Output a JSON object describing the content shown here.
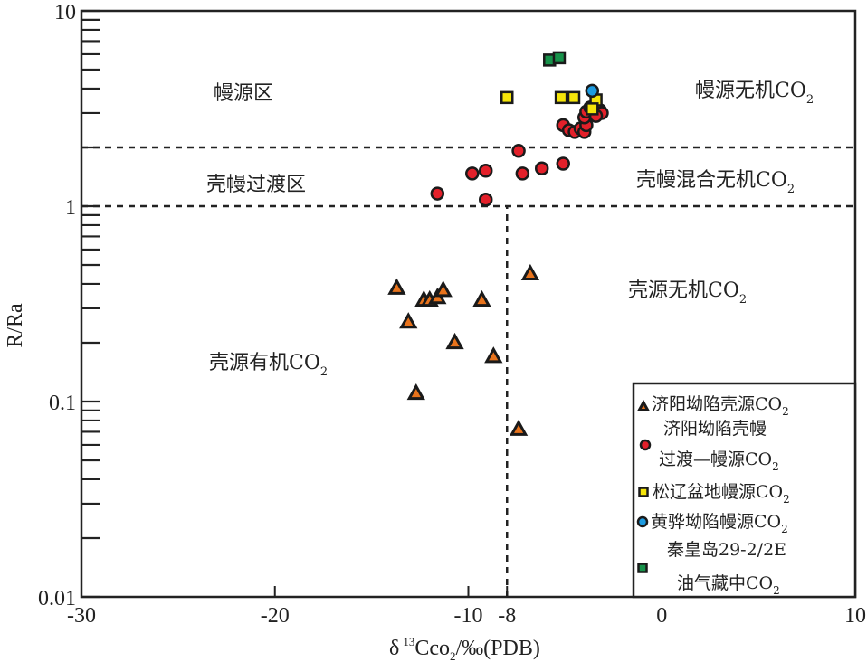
{
  "chart_data": {
    "type": "scatter",
    "title": "",
    "xlabel": {
      "delta": "δ",
      "sup": "13",
      "main": "Cco",
      "sub": "2",
      "tail": "/‰(PDB)"
    },
    "ylabel": "R/Ra",
    "xlim": [
      -30,
      10
    ],
    "ylim": [
      0.01,
      10
    ],
    "yscale": "log",
    "x_ticks": [
      -30,
      -20,
      -10,
      -8,
      0,
      10
    ],
    "x_tick_labels": [
      "-30",
      "-20",
      "-10",
      "-8",
      "0",
      "10"
    ],
    "y_ticks": [
      10,
      1,
      0.1,
      0.01
    ],
    "y_tick_labels": [
      "10",
      "1",
      "0.1",
      "0.01"
    ],
    "reference_lines": [
      {
        "type": "horizontal",
        "y": 2,
        "x_from": -30,
        "x_to": 10,
        "style": "dashed"
      },
      {
        "type": "horizontal",
        "y": 1,
        "x_from": -30,
        "x_to": 10,
        "style": "dashed"
      },
      {
        "type": "vertical",
        "x": -8,
        "y_from": 0.01,
        "y_to": 1,
        "style": "dashed"
      }
    ],
    "region_labels": [
      {
        "text": "幔源区",
        "sub": ""
      },
      {
        "text": "幔源无机CO",
        "sub": "2"
      },
      {
        "text": "壳幔过渡区",
        "sub": ""
      },
      {
        "text": "壳幔混合无机CO",
        "sub": "2"
      },
      {
        "text": "壳源无机CO",
        "sub": "2"
      },
      {
        "text": "壳源有机CO",
        "sub": "2"
      }
    ],
    "legend_position": "bottom-right",
    "series": [
      {
        "name": "济阳坳陷壳源CO2",
        "legend_lines": [
          {
            "text": "济阳坳陷壳源CO",
            "sub": "2"
          }
        ],
        "marker": "triangle",
        "color": "#e8731c",
        "points": [
          {
            "x": -13.7,
            "y": 0.38
          },
          {
            "x": -13.1,
            "y": 0.255
          },
          {
            "x": -12.3,
            "y": 0.33
          },
          {
            "x": -12.0,
            "y": 0.33
          },
          {
            "x": -11.6,
            "y": 0.34
          },
          {
            "x": -11.3,
            "y": 0.37
          },
          {
            "x": -10.7,
            "y": 0.2
          },
          {
            "x": -9.3,
            "y": 0.33
          },
          {
            "x": -8.7,
            "y": 0.17
          },
          {
            "x": -12.7,
            "y": 0.11
          },
          {
            "x": -6.8,
            "y": 0.45
          },
          {
            "x": -7.4,
            "y": 0.072
          }
        ]
      },
      {
        "name": "济阳坳陷壳幔过渡—幔源CO2",
        "legend_lines": [
          {
            "text": "济阳坳陷壳幔",
            "sub": ""
          },
          {
            "text": "过渡—幔源CO",
            "sub": "2"
          }
        ],
        "marker": "circle",
        "color": "#e3202a",
        "points": [
          {
            "x": -11.6,
            "y": 1.16
          },
          {
            "x": -9.8,
            "y": 1.47
          },
          {
            "x": -9.1,
            "y": 1.52
          },
          {
            "x": -9.1,
            "y": 1.08
          },
          {
            "x": -7.4,
            "y": 1.92
          },
          {
            "x": -7.2,
            "y": 1.47
          },
          {
            "x": -6.2,
            "y": 1.56
          },
          {
            "x": -5.1,
            "y": 1.65
          },
          {
            "x": -5.1,
            "y": 2.6
          },
          {
            "x": -4.8,
            "y": 2.45
          },
          {
            "x": -4.5,
            "y": 2.4
          },
          {
            "x": -4.2,
            "y": 2.5
          },
          {
            "x": -4.0,
            "y": 2.4
          },
          {
            "x": -3.9,
            "y": 2.6
          },
          {
            "x": -4.0,
            "y": 2.85
          },
          {
            "x": -3.9,
            "y": 3.05
          },
          {
            "x": -3.7,
            "y": 3.2
          },
          {
            "x": -3.2,
            "y": 3.1
          },
          {
            "x": -3.1,
            "y": 3.0
          },
          {
            "x": -3.4,
            "y": 2.9
          }
        ]
      },
      {
        "name": "松辽盆地幔源CO2",
        "legend_lines": [
          {
            "text": "松辽盆地幔源CO",
            "sub": "2"
          }
        ],
        "marker": "square",
        "color": "#f5e50a",
        "points": [
          {
            "x": -8.0,
            "y": 3.6
          },
          {
            "x": -5.2,
            "y": 3.6
          },
          {
            "x": -4.55,
            "y": 3.6
          },
          {
            "x": -3.4,
            "y": 3.5
          },
          {
            "x": -3.6,
            "y": 3.15
          }
        ]
      },
      {
        "name": "黄骅坳陷幔源CO2",
        "legend_lines": [
          {
            "text": "黄骅坳陷幔源CO",
            "sub": "2"
          }
        ],
        "marker": "circle",
        "color": "#1e9be0",
        "points": [
          {
            "x": -3.6,
            "y": 3.9
          }
        ]
      },
      {
        "name": "秦皇岛29-2/2E油气藏中CO2",
        "legend_lines": [
          {
            "text": "秦皇岛29-2/2E",
            "sub": ""
          },
          {
            "text": "油气藏中CO",
            "sub": "2"
          }
        ],
        "marker": "square",
        "color": "#17924a",
        "points": [
          {
            "x": -5.8,
            "y": 5.6
          },
          {
            "x": -5.3,
            "y": 5.75
          }
        ]
      }
    ]
  }
}
